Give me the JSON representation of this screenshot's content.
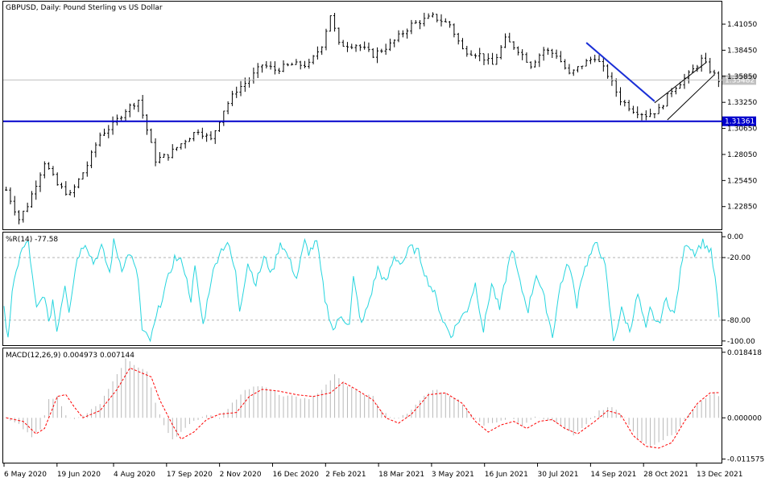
{
  "chart_data": {
    "type": "line",
    "panels": [
      {
        "id": "price",
        "kind": "ohlc",
        "title": "GBPUSD, Daily:  Pound Sterling vs US Dollar",
        "ylim": [
          1.2058,
          1.433
        ],
        "y_ticks": [
          "1.41050",
          "1.38450",
          "1.35850",
          "1.33250",
          "1.30650",
          "1.28050",
          "1.25450",
          "1.22850"
        ],
        "y_tick_values": [
          1.4105,
          1.3845,
          1.3585,
          1.3325,
          1.3065,
          1.2805,
          1.2545,
          1.2285
        ],
        "bid_line": {
          "value": 1.35482,
          "label": "1.35482",
          "color": "#c0c0c0"
        },
        "support_line": {
          "value": 1.31361,
          "label": "1.31361",
          "color": "#0000cc"
        },
        "trend_lines": [
          {
            "name": "downtrend",
            "color": "#1a2fd6",
            "from": [
              136,
              1.392
            ],
            "to": [
              152,
              1.3335
            ]
          },
          {
            "name": "channel-upper",
            "color": "#000000",
            "from": [
              152,
              1.332
            ],
            "to": [
              164,
              1.372
            ]
          },
          {
            "name": "channel-lower",
            "color": "#000000",
            "from": [
              155,
              1.315
            ],
            "to": [
              166,
              1.36
            ]
          }
        ],
        "anchors": [
          [
            0,
            1.245
          ],
          [
            3,
            1.216
          ],
          [
            5,
            1.23
          ],
          [
            9,
            1.273
          ],
          [
            12,
            1.25
          ],
          [
            15,
            1.24
          ],
          [
            19,
            1.27
          ],
          [
            22,
            1.3
          ],
          [
            25,
            1.31
          ],
          [
            28,
            1.325
          ],
          [
            31,
            1.335
          ],
          [
            33,
            1.305
          ],
          [
            35,
            1.275
          ],
          [
            38,
            1.28
          ],
          [
            42,
            1.295
          ],
          [
            45,
            1.305
          ],
          [
            48,
            1.295
          ],
          [
            51,
            1.325
          ],
          [
            54,
            1.345
          ],
          [
            57,
            1.355
          ],
          [
            60,
            1.37
          ],
          [
            63,
            1.365
          ],
          [
            67,
            1.37
          ],
          [
            71,
            1.37
          ],
          [
            74,
            1.39
          ],
          [
            76,
            1.42
          ],
          [
            78,
            1.39
          ],
          [
            82,
            1.39
          ],
          [
            86,
            1.38
          ],
          [
            90,
            1.39
          ],
          [
            95,
            1.41
          ],
          [
            100,
            1.418
          ],
          [
            104,
            1.41
          ],
          [
            107,
            1.385
          ],
          [
            111,
            1.38
          ],
          [
            114,
            1.37
          ],
          [
            117,
            1.395
          ],
          [
            120,
            1.385
          ],
          [
            123,
            1.37
          ],
          [
            126,
            1.385
          ],
          [
            129,
            1.38
          ],
          [
            132,
            1.36
          ],
          [
            135,
            1.37
          ],
          [
            138,
            1.378
          ],
          [
            141,
            1.36
          ],
          [
            144,
            1.335
          ],
          [
            147,
            1.325
          ],
          [
            150,
            1.32
          ],
          [
            153,
            1.325
          ],
          [
            156,
            1.345
          ],
          [
            160,
            1.36
          ],
          [
            163,
            1.375
          ],
          [
            167,
            1.3548
          ]
        ]
      },
      {
        "id": "wr",
        "kind": "line",
        "title": "%R(14) -77.58",
        "ylim": [
          -104,
          4
        ],
        "y_ticks": [
          "0.00",
          "-20.00",
          "-80.00",
          "-100.00"
        ],
        "y_tick_values": [
          0,
          -20,
          -80,
          -100
        ],
        "levels": [
          -20,
          -80
        ],
        "color": "#26d5de",
        "anchors": [
          [
            0,
            -70
          ],
          [
            1,
            -95
          ],
          [
            2,
            -55
          ],
          [
            4,
            -15
          ],
          [
            6,
            -5
          ],
          [
            7,
            -40
          ],
          [
            8,
            -70
          ],
          [
            10,
            -55
          ],
          [
            11,
            -85
          ],
          [
            12,
            -60
          ],
          [
            13,
            -90
          ],
          [
            15,
            -45
          ],
          [
            16,
            -70
          ],
          [
            18,
            -20
          ],
          [
            20,
            -5
          ],
          [
            22,
            -25
          ],
          [
            24,
            -10
          ],
          [
            26,
            -35
          ],
          [
            27,
            -5
          ],
          [
            29,
            -30
          ],
          [
            31,
            -15
          ],
          [
            33,
            -40
          ],
          [
            34,
            -90
          ],
          [
            36,
            -100
          ],
          [
            38,
            -70
          ],
          [
            40,
            -45
          ],
          [
            42,
            -20
          ],
          [
            44,
            -25
          ],
          [
            46,
            -60
          ],
          [
            47,
            -30
          ],
          [
            49,
            -85
          ],
          [
            51,
            -40
          ],
          [
            53,
            -15
          ],
          [
            55,
            -5
          ],
          [
            57,
            -35
          ],
          [
            58,
            -70
          ],
          [
            60,
            -25
          ],
          [
            62,
            -45
          ],
          [
            64,
            -20
          ],
          [
            66,
            -35
          ],
          [
            68,
            -5
          ],
          [
            70,
            -20
          ],
          [
            72,
            -40
          ],
          [
            74,
            -5
          ],
          [
            75,
            -15
          ],
          [
            77,
            -5
          ],
          [
            79,
            -60
          ],
          [
            81,
            -90
          ],
          [
            83,
            -75
          ],
          [
            85,
            -85
          ],
          [
            86,
            -40
          ],
          [
            88,
            -85
          ],
          [
            90,
            -60
          ],
          [
            92,
            -30
          ],
          [
            94,
            -45
          ],
          [
            96,
            -20
          ],
          [
            98,
            -25
          ],
          [
            100,
            -10
          ],
          [
            102,
            -15
          ],
          [
            104,
            -40
          ],
          [
            106,
            -55
          ],
          [
            108,
            -80
          ],
          [
            110,
            -95
          ],
          [
            112,
            -80
          ],
          [
            114,
            -70
          ],
          [
            116,
            -45
          ],
          [
            118,
            -90
          ],
          [
            120,
            -45
          ],
          [
            122,
            -70
          ],
          [
            124,
            -30
          ],
          [
            125,
            -10
          ],
          [
            127,
            -45
          ],
          [
            129,
            -70
          ],
          [
            131,
            -35
          ],
          [
            133,
            -60
          ],
          [
            135,
            -95
          ],
          [
            137,
            -45
          ],
          [
            139,
            -25
          ],
          [
            141,
            -65
          ],
          [
            142,
            -40
          ],
          [
            144,
            -20
          ],
          [
            146,
            -5
          ],
          [
            148,
            -30
          ],
          [
            150,
            -100
          ],
          [
            152,
            -70
          ],
          [
            154,
            -90
          ],
          [
            156,
            -55
          ],
          [
            158,
            -90
          ],
          [
            159,
            -70
          ],
          [
            161,
            -85
          ],
          [
            163,
            -60
          ],
          [
            165,
            -75
          ],
          [
            167,
            -20
          ],
          [
            168,
            -5
          ],
          [
            170,
            -15
          ],
          [
            172,
            -5
          ],
          [
            174,
            -15
          ],
          [
            175,
            -40
          ],
          [
            176,
            -77.58
          ]
        ]
      },
      {
        "id": "macd",
        "kind": "histogram+line",
        "title": "MACD(12,26,9) 0.004973 0.007144",
        "ylim": [
          -0.0126,
          0.0195
        ],
        "y_ticks": [
          "0.018418",
          "0.000000",
          "-0.011575"
        ],
        "y_tick_values": [
          0.018418,
          0,
          -0.011575
        ],
        "histogram_color": "#b8b8b8",
        "signal_color": "#ff0000",
        "macd_anchors": [
          [
            0,
            0.0
          ],
          [
            3,
            -0.002
          ],
          [
            6,
            -0.0055
          ],
          [
            8,
            -0.003
          ],
          [
            10,
            0.005
          ],
          [
            12,
            0.006
          ],
          [
            14,
            0.001
          ],
          [
            16,
            -0.0005
          ],
          [
            18,
            0.0005
          ],
          [
            22,
            0.004
          ],
          [
            26,
            0.012
          ],
          [
            28,
            0.0165
          ],
          [
            30,
            0.015
          ],
          [
            33,
            0.013
          ],
          [
            35,
            0.004
          ],
          [
            37,
            -0.002
          ],
          [
            39,
            -0.006
          ],
          [
            41,
            -0.004
          ],
          [
            44,
            -0.001
          ],
          [
            47,
            0.001
          ],
          [
            50,
            0.0
          ],
          [
            53,
            0.004
          ],
          [
            56,
            0.008
          ],
          [
            59,
            0.009
          ],
          [
            62,
            0.008
          ],
          [
            65,
            0.006
          ],
          [
            68,
            0.006
          ],
          [
            71,
            0.005
          ],
          [
            74,
            0.008
          ],
          [
            77,
            0.012
          ],
          [
            80,
            0.009
          ],
          [
            83,
            0.007
          ],
          [
            86,
            0.006
          ],
          [
            88,
            0.002
          ],
          [
            91,
            -0.0005
          ],
          [
            94,
            0.001
          ],
          [
            97,
            0.005
          ],
          [
            100,
            0.008
          ],
          [
            103,
            0.007
          ],
          [
            106,
            0.005
          ],
          [
            109,
            0.001
          ],
          [
            112,
            -0.002
          ],
          [
            115,
            -0.001
          ],
          [
            118,
            0.0
          ],
          [
            121,
            -0.002
          ],
          [
            124,
            0.0005
          ],
          [
            127,
            -0.0005
          ],
          [
            130,
            -0.002
          ],
          [
            133,
            -0.005
          ],
          [
            136,
            -0.002
          ],
          [
            139,
            0.002
          ],
          [
            142,
            0.003
          ],
          [
            145,
            0.0
          ],
          [
            148,
            -0.006
          ],
          [
            151,
            -0.008
          ],
          [
            154,
            -0.006
          ],
          [
            157,
            -0.004
          ],
          [
            160,
            0.001
          ],
          [
            163,
            0.005
          ],
          [
            166,
            0.007
          ],
          [
            168,
            0.005
          ]
        ],
        "signal_anchors": [
          [
            0,
            0.0
          ],
          [
            4,
            -0.001
          ],
          [
            7,
            -0.0045
          ],
          [
            9,
            -0.003
          ],
          [
            12,
            0.006
          ],
          [
            14,
            0.0065
          ],
          [
            16,
            0.003
          ],
          [
            18,
            0.0
          ],
          [
            22,
            0.002
          ],
          [
            26,
            0.008
          ],
          [
            29,
            0.014
          ],
          [
            31,
            0.013
          ],
          [
            34,
            0.0115
          ],
          [
            36,
            0.005
          ],
          [
            39,
            -0.002
          ],
          [
            41,
            -0.006
          ],
          [
            44,
            -0.004
          ],
          [
            47,
            -0.0005
          ],
          [
            50,
            0.001
          ],
          [
            54,
            0.0015
          ],
          [
            57,
            0.006
          ],
          [
            60,
            0.008
          ],
          [
            64,
            0.0075
          ],
          [
            68,
            0.0065
          ],
          [
            72,
            0.006
          ],
          [
            76,
            0.007
          ],
          [
            79,
            0.01
          ],
          [
            82,
            0.008
          ],
          [
            86,
            0.005
          ],
          [
            89,
            0.0
          ],
          [
            92,
            -0.0015
          ],
          [
            95,
            0.001
          ],
          [
            99,
            0.0065
          ],
          [
            103,
            0.007
          ],
          [
            107,
            0.004
          ],
          [
            110,
            -0.001
          ],
          [
            113,
            -0.004
          ],
          [
            116,
            -0.002
          ],
          [
            119,
            -0.001
          ],
          [
            122,
            -0.003
          ],
          [
            125,
            -0.001
          ],
          [
            128,
            -0.0005
          ],
          [
            131,
            -0.003
          ],
          [
            134,
            -0.0045
          ],
          [
            138,
            -0.001
          ],
          [
            141,
            0.002
          ],
          [
            144,
            0.001
          ],
          [
            147,
            -0.005
          ],
          [
            150,
            -0.008
          ],
          [
            153,
            -0.0085
          ],
          [
            156,
            -0.007
          ],
          [
            159,
            -0.001
          ],
          [
            162,
            0.004
          ],
          [
            165,
            0.007
          ],
          [
            168,
            0.0071
          ]
        ]
      }
    ],
    "x_labels": [
      {
        "label": "6 May 2020",
        "index": 0
      },
      {
        "label": "19 Jun 2020",
        "index": 15
      },
      {
        "label": "4 Aug 2020",
        "index": 31
      },
      {
        "label": "17 Sep 2020",
        "index": 46
      },
      {
        "label": "2 Nov 2020",
        "index": 61
      },
      {
        "label": "16 Dec 2020",
        "index": 76
      },
      {
        "label": "2 Feb 2021",
        "index": 91
      },
      {
        "label": "18 Mar 2021",
        "index": 106
      },
      {
        "label": "3 May 2021",
        "index": 121
      },
      {
        "label": "16 Jun 2021",
        "index": 136
      },
      {
        "label": "30 Jul 2021",
        "index": 151
      },
      {
        "label": "14 Sep 2021",
        "index": 166
      },
      {
        "label": "28 Oct 2021",
        "index": 181
      },
      {
        "label": "13 Dec 2021",
        "index": 196
      }
    ],
    "bar_count": 168
  }
}
